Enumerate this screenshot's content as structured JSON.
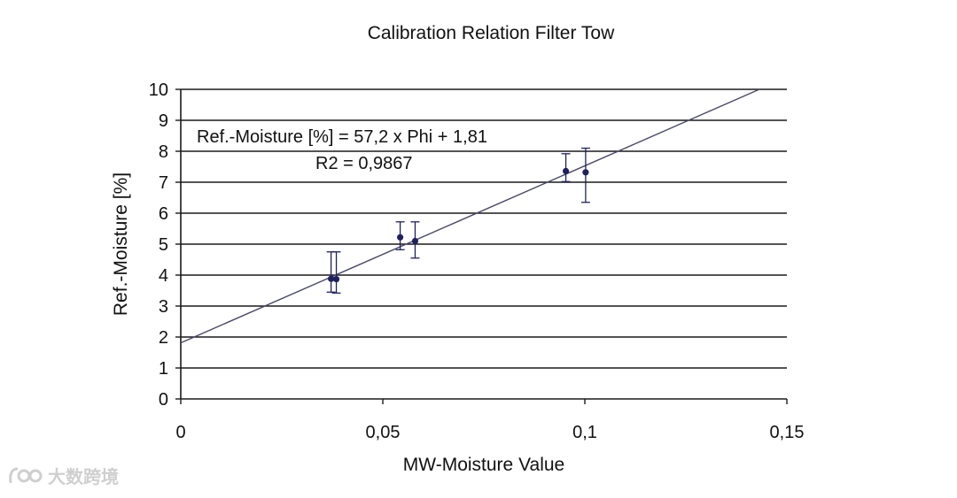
{
  "chart_data": {
    "type": "scatter",
    "title": "Calibration Relation Filter Tow",
    "xlabel": "MW-Moisture Value",
    "ylabel": "Ref.-Moisture [%]",
    "xlim": [
      0,
      0.15
    ],
    "ylim": [
      0,
      10
    ],
    "x_ticks": [
      0,
      0.05,
      0.1,
      0.15
    ],
    "x_tick_labels": [
      "0",
      "0,05",
      "0,1",
      "0,15"
    ],
    "y_ticks": [
      0,
      1,
      2,
      3,
      4,
      5,
      6,
      7,
      8,
      9,
      10
    ],
    "y_tick_labels": [
      "0",
      "1",
      "2",
      "3",
      "4",
      "5",
      "6",
      "7",
      "8",
      "9",
      "10"
    ],
    "grid": "horizontal",
    "points": [
      {
        "x": 0.0372,
        "y": 3.88,
        "err_low": 3.45,
        "err_high": 4.75
      },
      {
        "x": 0.0385,
        "y": 3.87,
        "err_low": 3.42,
        "err_high": 4.75
      },
      {
        "x": 0.0543,
        "y": 5.22,
        "err_low": 4.82,
        "err_high": 5.72
      },
      {
        "x": 0.058,
        "y": 5.1,
        "err_low": 4.55,
        "err_high": 5.72
      },
      {
        "x": 0.0953,
        "y": 7.36,
        "err_low": 7.02,
        "err_high": 7.92
      },
      {
        "x": 0.1002,
        "y": 7.32,
        "err_low": 6.35,
        "err_high": 8.1
      }
    ],
    "trendline": {
      "slope": 57.2,
      "intercept": 1.81,
      "x_start": 0,
      "x_end": 0.1432
    },
    "equation_label": "Ref.-Moisture [%] = 57,2 x Phi + 1,81",
    "r2_label": "R2 = 0,9867",
    "colors": {
      "points": "#1f2060",
      "line": "#4a4a6a",
      "grid": "#1a1a1a"
    }
  },
  "watermark": {
    "text": "大数跨境"
  }
}
